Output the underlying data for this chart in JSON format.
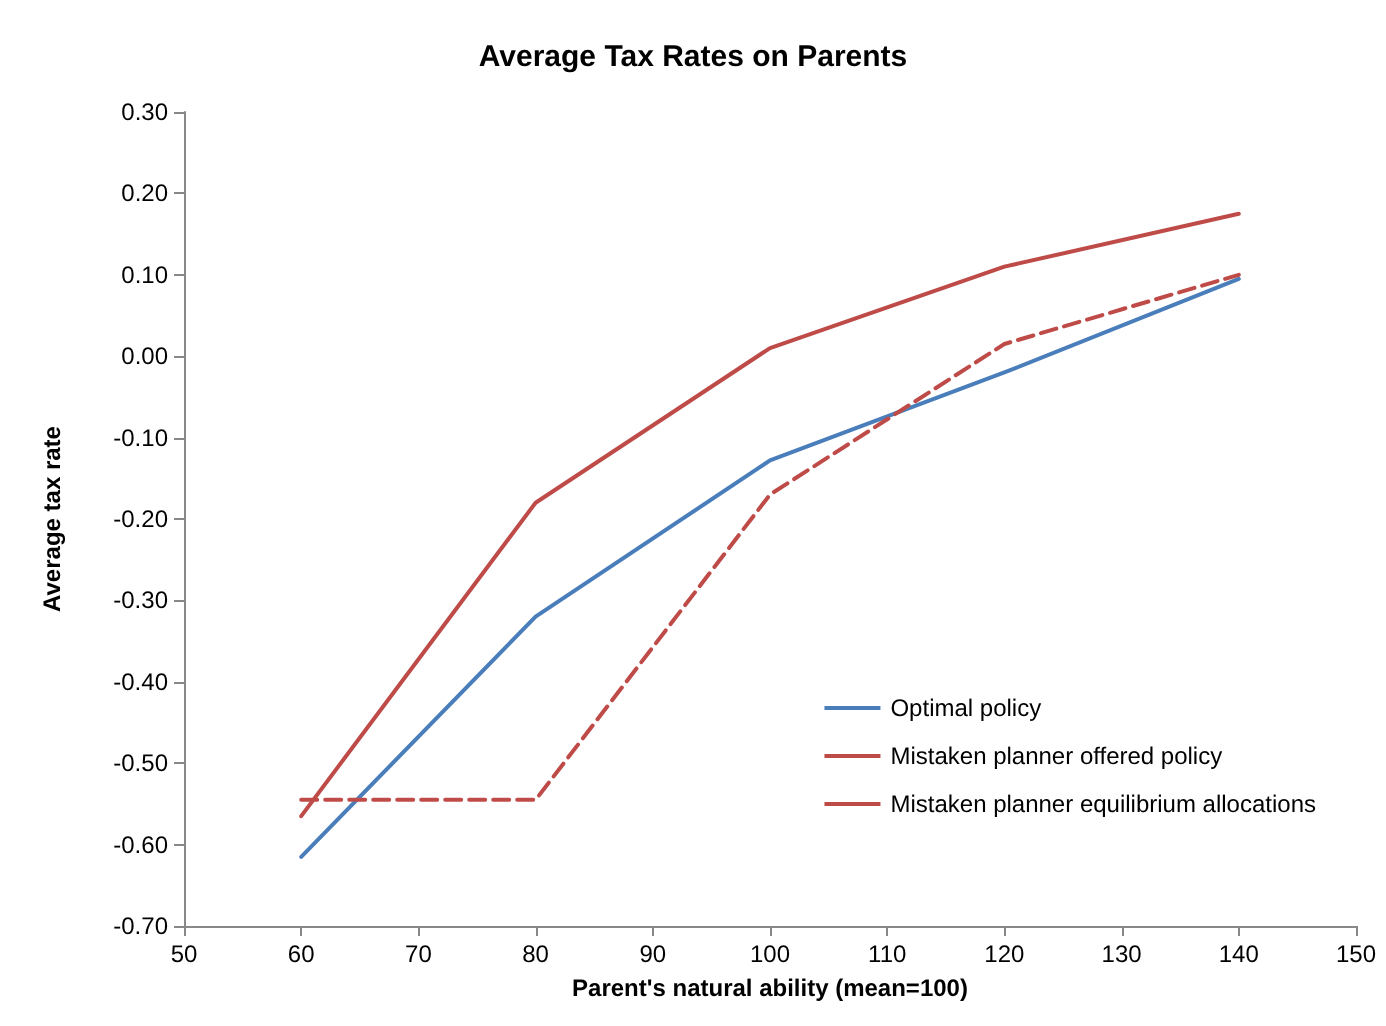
{
  "chart_data": {
    "type": "line",
    "title": "Average Tax Rates on Parents",
    "xlabel": "Parent's natural ability (mean=100)",
    "ylabel": "Average tax rate",
    "x": [
      60,
      80,
      100,
      120,
      140
    ],
    "xlim": [
      50,
      150
    ],
    "xticks": [
      50,
      60,
      70,
      80,
      90,
      100,
      110,
      120,
      130,
      140,
      150
    ],
    "ylim": [
      -0.7,
      0.3
    ],
    "yticks": [
      {
        "value": -0.7,
        "label": "-0.70"
      },
      {
        "value": -0.6,
        "label": "-0.60"
      },
      {
        "value": -0.5,
        "label": "-0.50"
      },
      {
        "value": -0.4,
        "label": "-0.40"
      },
      {
        "value": -0.3,
        "label": "-0.30"
      },
      {
        "value": -0.2,
        "label": "-0.20"
      },
      {
        "value": -0.1,
        "label": "-0.10"
      },
      {
        "value": 0,
        "label": "0.00"
      },
      {
        "value": 0.1,
        "label": "0.10"
      },
      {
        "value": 0.2,
        "label": "0.20"
      },
      {
        "value": 0.3,
        "label": "0.30"
      }
    ],
    "grid": false,
    "legend": "bottom right",
    "marker": "none",
    "series": [
      {
        "name": "Optimal policy",
        "color": "#4a7ebb",
        "line_style": "solid",
        "values": [
          -0.615,
          -0.32,
          -0.128,
          -0.02,
          0.095
        ]
      },
      {
        "name": "Mistaken planner offered policy",
        "color": "#be4b48",
        "line_style": "solid",
        "values": [
          -0.565,
          -0.18,
          0.01,
          0.11,
          0.175
        ]
      },
      {
        "name": "Mistaken planner equilibrium allocations",
        "color": "#be4b48",
        "line_style": "dashed",
        "values": [
          -0.545,
          -0.545,
          -0.17,
          0.015,
          0.1
        ]
      }
    ]
  }
}
